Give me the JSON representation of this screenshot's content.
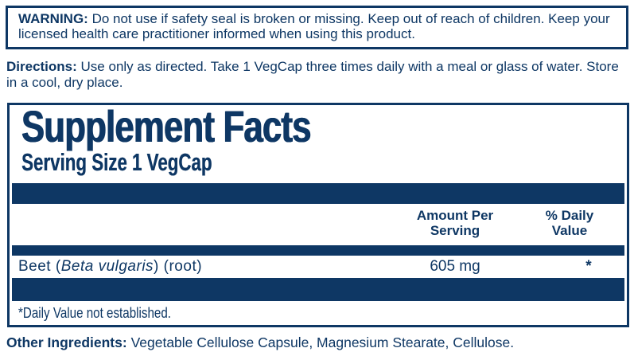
{
  "colors": {
    "navy": "#0e3764",
    "background": "#ffffff"
  },
  "warning": {
    "label": "WARNING:",
    "text": "Do not use if safety seal is broken or missing. Keep out of reach of children. Keep your licensed health care practitioner informed when using this product."
  },
  "directions": {
    "label": "Directions:",
    "text": "Use only as directed. Take 1 VegCap three times daily with a meal or glass of water. Store in a cool, dry place."
  },
  "supplement_facts": {
    "title": "Supplement Facts",
    "serving_size": "Serving Size 1 VegCap",
    "columns": {
      "amount_lines": [
        "Amount Per",
        "Serving"
      ],
      "daily_lines": [
        "% Daily",
        "Value"
      ]
    },
    "rows": [
      {
        "name_prefix": "Beet (",
        "name_species": "Beta vulgaris",
        "name_suffix": ") (root)",
        "amount": "605 mg",
        "daily_value": "*"
      }
    ],
    "footnote": "*Daily Value not established."
  },
  "other_ingredients": {
    "label": "Other Ingredients:",
    "text": "Vegetable Cellulose Capsule, Magnesium Stearate, Cellulose."
  }
}
